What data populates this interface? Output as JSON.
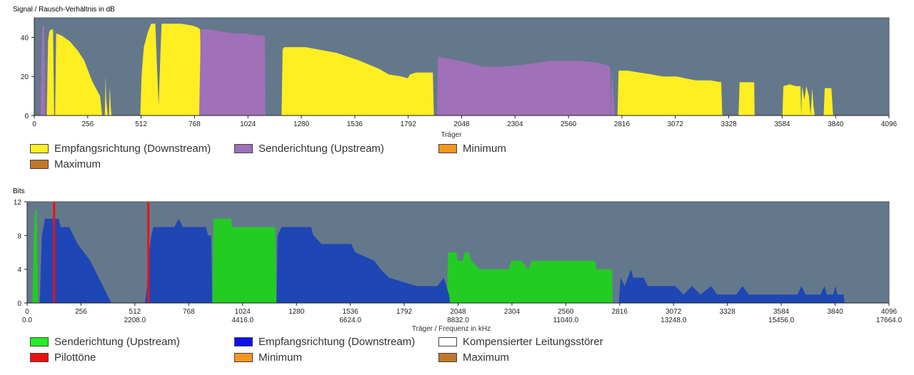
{
  "chart_data": [
    {
      "type": "area",
      "ylabel": "Signal / Rausch-Verhältnis in dB",
      "xlabel": "Träger",
      "xlim": [
        0,
        4096
      ],
      "ylim": [
        0,
        50
      ],
      "xticks": [
        "0",
        "256",
        "512",
        "768",
        "1024",
        "1280",
        "1536",
        "1792",
        "2048",
        "2304",
        "2560",
        "2816",
        "3072",
        "3328",
        "3584",
        "3840",
        "4096"
      ],
      "yticks": [
        "0",
        "20",
        "40"
      ],
      "series": [
        {
          "name": "Empfangsrichtung (Downstream)",
          "color": "#ffee22",
          "points": [
            [
              60,
              0
            ],
            [
              66,
              38
            ],
            [
              72,
              43
            ],
            [
              80,
              44
            ],
            [
              90,
              44
            ],
            [
              95,
              0
            ],
            [
              100,
              0
            ],
            [
              105,
              42
            ],
            [
              130,
              41
            ],
            [
              170,
              38
            ],
            [
              210,
              33
            ],
            [
              240,
              28
            ],
            [
              265,
              21
            ],
            [
              280,
              17
            ],
            [
              300,
              13
            ],
            [
              315,
              10
            ],
            [
              325,
              0
            ],
            [
              338,
              0
            ],
            [
              342,
              20
            ],
            [
              345,
              8
            ],
            [
              352,
              0
            ],
            [
              358,
              0
            ],
            [
              362,
              15
            ],
            [
              366,
              5
            ],
            [
              370,
              0
            ],
            [
              508,
              0
            ],
            [
              514,
              20
            ],
            [
              525,
              35
            ],
            [
              545,
              43
            ],
            [
              560,
              47
            ],
            [
              580,
              47
            ],
            [
              590,
              20
            ],
            [
              596,
              5
            ],
            [
              604,
              30
            ],
            [
              610,
              47
            ],
            [
              630,
              47
            ],
            [
              700,
              47
            ],
            [
              760,
              46
            ],
            [
              785,
              45
            ],
            [
              795,
              44
            ],
            [
              802,
              0
            ],
            [
              1185,
              0
            ],
            [
              1190,
              34
            ],
            [
              1200,
              35
            ],
            [
              1300,
              35
            ],
            [
              1450,
              32
            ],
            [
              1560,
              28
            ],
            [
              1650,
              24
            ],
            [
              1700,
              21
            ],
            [
              1760,
              20
            ],
            [
              1790,
              19
            ],
            [
              1800,
              21
            ],
            [
              1830,
              22
            ],
            [
              1880,
              22
            ],
            [
              1910,
              22
            ],
            [
              1915,
              0
            ],
            [
              2795,
              0
            ],
            [
              2800,
              23
            ],
            [
              2840,
              23
            ],
            [
              2900,
              22
            ],
            [
              2960,
              21
            ],
            [
              3010,
              20
            ],
            [
              3080,
              20
            ],
            [
              3120,
              19
            ],
            [
              3170,
              18
            ],
            [
              3240,
              18
            ],
            [
              3292,
              17
            ],
            [
              3297,
              0
            ],
            [
              3375,
              0
            ],
            [
              3380,
              17
            ],
            [
              3450,
              17
            ],
            [
              3452,
              0
            ],
            [
              3585,
              0
            ],
            [
              3590,
              15
            ],
            [
              3620,
              16
            ],
            [
              3650,
              15
            ],
            [
              3672,
              15
            ],
            [
              3675,
              0
            ],
            [
              3680,
              15
            ],
            [
              3690,
              8
            ],
            [
              3700,
              15
            ],
            [
              3712,
              10
            ],
            [
              3720,
              0
            ],
            [
              3728,
              14
            ],
            [
              3734,
              5
            ],
            [
              3740,
              0
            ],
            [
              3783,
              0
            ],
            [
              3788,
              14
            ],
            [
              3820,
              14
            ],
            [
              3828,
              0
            ]
          ]
        },
        {
          "name": "Senderichtung (Upstream)",
          "color": "#a070b8",
          "points": [
            [
              30,
              0
            ],
            [
              36,
              40
            ],
            [
              40,
              46
            ],
            [
              48,
              46
            ],
            [
              52,
              0
            ],
            [
              790,
              0
            ],
            [
              798,
              44
            ],
            [
              840,
              44
            ],
            [
              900,
              43
            ],
            [
              960,
              42
            ],
            [
              1000,
              42
            ],
            [
              1080,
              41
            ],
            [
              1105,
              41
            ],
            [
              1108,
              0
            ],
            [
              1930,
              0
            ],
            [
              1935,
              30
            ],
            [
              1990,
              29
            ],
            [
              2080,
              27
            ],
            [
              2150,
              25
            ],
            [
              2250,
              25
            ],
            [
              2350,
              26
            ],
            [
              2470,
              28
            ],
            [
              2620,
              28
            ],
            [
              2700,
              27
            ],
            [
              2740,
              26
            ],
            [
              2760,
              25
            ],
            [
              2763,
              0
            ],
            [
              2768,
              24
            ],
            [
              2775,
              12
            ],
            [
              2782,
              0
            ]
          ]
        },
        {
          "name": "Minimum",
          "color": "#f5961e"
        },
        {
          "name": "Maximum",
          "color": "#c07828"
        }
      ]
    },
    {
      "type": "area",
      "ylabel": "Bits",
      "xlabel": "Träger / Frequenz in kHz",
      "xlim": [
        0,
        4096
      ],
      "ylim": [
        0,
        12
      ],
      "xticks": [
        "0",
        "256",
        "512",
        "768",
        "1024",
        "1280",
        "1536",
        "1792",
        "2048",
        "2304",
        "2560",
        "2816",
        "3072",
        "3328",
        "3584",
        "3840",
        "4096"
      ],
      "freq_ticks": [
        "0.0",
        "2208.0",
        "4416.0",
        "6624.0",
        "8832.0",
        "11040.0",
        "13248.0",
        "15456.0",
        "17664.0"
      ],
      "yticks": [
        "0",
        "4",
        "8",
        "12"
      ],
      "series": [
        {
          "name": "Senderichtung (Upstream)",
          "color": "#22cc22",
          "points": [
            [
              25,
              0
            ],
            [
              32,
              8
            ],
            [
              38,
              11
            ],
            [
              45,
              11
            ],
            [
              52,
              0
            ],
            [
              880,
              0
            ],
            [
              886,
              10
            ],
            [
              970,
              10
            ],
            [
              972,
              9
            ],
            [
              1180,
              9
            ],
            [
              1185,
              0
            ],
            [
              1995,
              0
            ],
            [
              2000,
              6
            ],
            [
              2040,
              6
            ],
            [
              2045,
              5
            ],
            [
              2070,
              5
            ],
            [
              2080,
              6
            ],
            [
              2100,
              6
            ],
            [
              2110,
              5
            ],
            [
              2150,
              4
            ],
            [
              2290,
              4
            ],
            [
              2300,
              5
            ],
            [
              2350,
              5
            ],
            [
              2380,
              4
            ],
            [
              2400,
              5
            ],
            [
              2700,
              5
            ],
            [
              2705,
              4
            ],
            [
              2780,
              4
            ],
            [
              2783,
              0
            ]
          ]
        },
        {
          "name": "Empfangsrichtung (Downstream)",
          "color": "#1e46b4",
          "points": [
            [
              60,
              0
            ],
            [
              70,
              8
            ],
            [
              78,
              9
            ],
            [
              85,
              10
            ],
            [
              150,
              10
            ],
            [
              160,
              9
            ],
            [
              200,
              9
            ],
            [
              220,
              8
            ],
            [
              240,
              7
            ],
            [
              270,
              6
            ],
            [
              300,
              5
            ],
            [
              320,
              4
            ],
            [
              340,
              3
            ],
            [
              360,
              2
            ],
            [
              380,
              1
            ],
            [
              400,
              0
            ],
            [
              560,
              0
            ],
            [
              570,
              2
            ],
            [
              580,
              6
            ],
            [
              590,
              8
            ],
            [
              600,
              9
            ],
            [
              700,
              9
            ],
            [
              720,
              10
            ],
            [
              740,
              9
            ],
            [
              850,
              9
            ],
            [
              860,
              8
            ],
            [
              875,
              8
            ],
            [
              880,
              0
            ],
            [
              1185,
              0
            ],
            [
              1190,
              8
            ],
            [
              1210,
              9
            ],
            [
              1350,
              9
            ],
            [
              1360,
              8
            ],
            [
              1400,
              7
            ],
            [
              1540,
              7
            ],
            [
              1560,
              6
            ],
            [
              1650,
              5
            ],
            [
              1680,
              4
            ],
            [
              1720,
              3
            ],
            [
              1850,
              2
            ],
            [
              1950,
              2
            ],
            [
              1980,
              3
            ],
            [
              2005,
              1
            ],
            [
              2010,
              0
            ],
            [
              2812,
              0
            ],
            [
              2820,
              3
            ],
            [
              2840,
              2
            ],
            [
              2870,
              4
            ],
            [
              2880,
              3
            ],
            [
              2930,
              3
            ],
            [
              2950,
              2
            ],
            [
              3080,
              2
            ],
            [
              3120,
              1
            ],
            [
              3160,
              2
            ],
            [
              3200,
              1
            ],
            [
              3250,
              2
            ],
            [
              3280,
              1
            ],
            [
              3370,
              1
            ],
            [
              3400,
              2
            ],
            [
              3430,
              1
            ],
            [
              3590,
              1
            ],
            [
              3660,
              1
            ],
            [
              3680,
              2
            ],
            [
              3700,
              1
            ],
            [
              3770,
              1
            ],
            [
              3790,
              2
            ],
            [
              3800,
              1
            ],
            [
              3830,
              1
            ],
            [
              3842,
              2
            ],
            [
              3850,
              1
            ],
            [
              3880,
              1
            ],
            [
              3885,
              0
            ]
          ]
        },
        {
          "name": "Kompensierter Leitungsstörer",
          "color": "#ffffff"
        },
        {
          "name": "Pilottöne",
          "color": "#ee1111",
          "x": [
            128,
            576
          ]
        },
        {
          "name": "Minimum",
          "color": "#f5961e"
        },
        {
          "name": "Maximum",
          "color": "#c07828"
        }
      ]
    }
  ]
}
